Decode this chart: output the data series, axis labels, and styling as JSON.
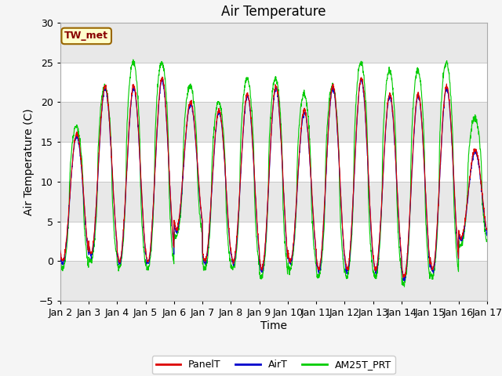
{
  "title": "Air Temperature",
  "ylabel": "Air Temperature (C)",
  "xlabel": "Time",
  "ylim": [
    -5,
    30
  ],
  "annotation_text": "TW_met",
  "background_color": "#ffffff",
  "band_color": "#e8e8e8",
  "legend_labels": [
    "PanelT",
    "AirT",
    "AM25T_PRT"
  ],
  "legend_colors": [
    "#dd0000",
    "#0000cc",
    "#00cc00"
  ],
  "xtick_labels": [
    "Jan 2",
    "Jan 3",
    "Jan 4",
    "Jan 5",
    "Jan 6",
    "Jan 7",
    "Jan 8",
    "Jan 9",
    "Jan 10",
    "Jan 11",
    "Jan 12",
    "Jan 13",
    "Jan 14",
    "Jan 15",
    "Jan 16",
    "Jan 17"
  ],
  "yticks": [
    -5,
    0,
    5,
    10,
    15,
    20,
    25,
    30
  ],
  "grid_color": "#d0d0d0",
  "title_fontsize": 12,
  "label_fontsize": 10,
  "tick_fontsize": 9
}
